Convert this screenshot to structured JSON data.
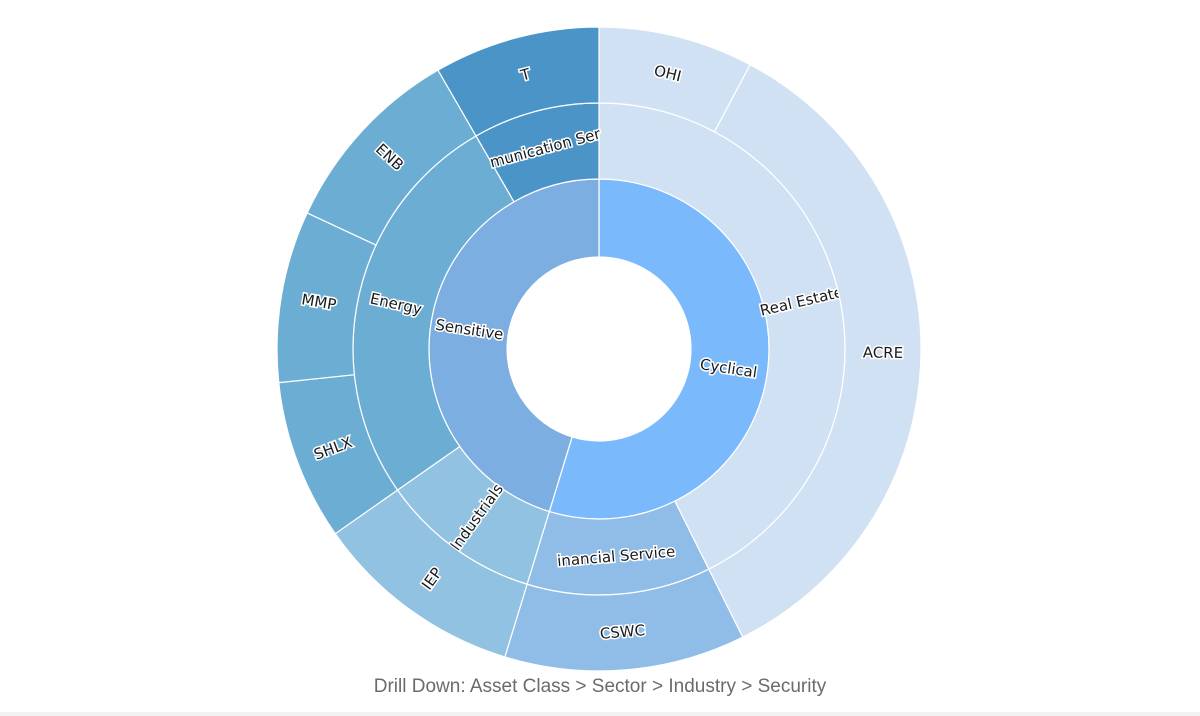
{
  "chart_data": {
    "type": "sunburst",
    "caption": "Drill Down: Asset Class > Sector > Industry > Security",
    "rings": [
      [
        {
          "label": "Cyclical",
          "start": 0,
          "end": 197,
          "color": "#79b9fc",
          "show_label": true
        },
        {
          "label": "Sensitive",
          "start": 197,
          "end": 360,
          "color": "#7caee2",
          "show_label": true
        }
      ],
      [
        {
          "label": "Real Estate",
          "start": 0,
          "end": 153.5,
          "color": "#d0e1f4",
          "show_label": true
        },
        {
          "label": "Financial Services",
          "display": "inancial Service",
          "start": 153.5,
          "end": 197,
          "color": "#8fbde8",
          "show_label": true
        },
        {
          "label": "Industrials",
          "start": 197,
          "end": 235,
          "color": "#92c2e1",
          "show_label": true
        },
        {
          "label": "Energy",
          "start": 235,
          "end": 330,
          "color": "#6cadd4",
          "show_label": true
        },
        {
          "label": "Communication Services",
          "display": "munication Ser",
          "start": 330,
          "end": 360,
          "color": "#4a94c8",
          "show_label": true
        }
      ],
      [
        {
          "label": "OHI",
          "start": 0,
          "end": 28,
          "color": "#d0e1f4",
          "show_label": true
        },
        {
          "label": "ACRE",
          "start": 28,
          "end": 153.5,
          "color": "#d0e1f4",
          "show_label": true
        },
        {
          "label": "CSWC",
          "start": 153.5,
          "end": 197,
          "color": "#8fbde8",
          "show_label": true
        },
        {
          "label": "IEP",
          "start": 197,
          "end": 235,
          "color": "#92c2e1",
          "show_label": true
        },
        {
          "label": "SHLX",
          "start": 235,
          "end": 264,
          "color": "#6cadd4",
          "show_label": true
        },
        {
          "label": "MMP",
          "start": 264,
          "end": 295,
          "color": "#6cadd4",
          "show_label": true
        },
        {
          "label": "ENB",
          "start": 295,
          "end": 330,
          "color": "#6cadd4",
          "show_label": true
        },
        {
          "label": "T",
          "start": 330,
          "end": 360,
          "color": "#4a94c8",
          "show_label": true
        }
      ]
    ]
  }
}
